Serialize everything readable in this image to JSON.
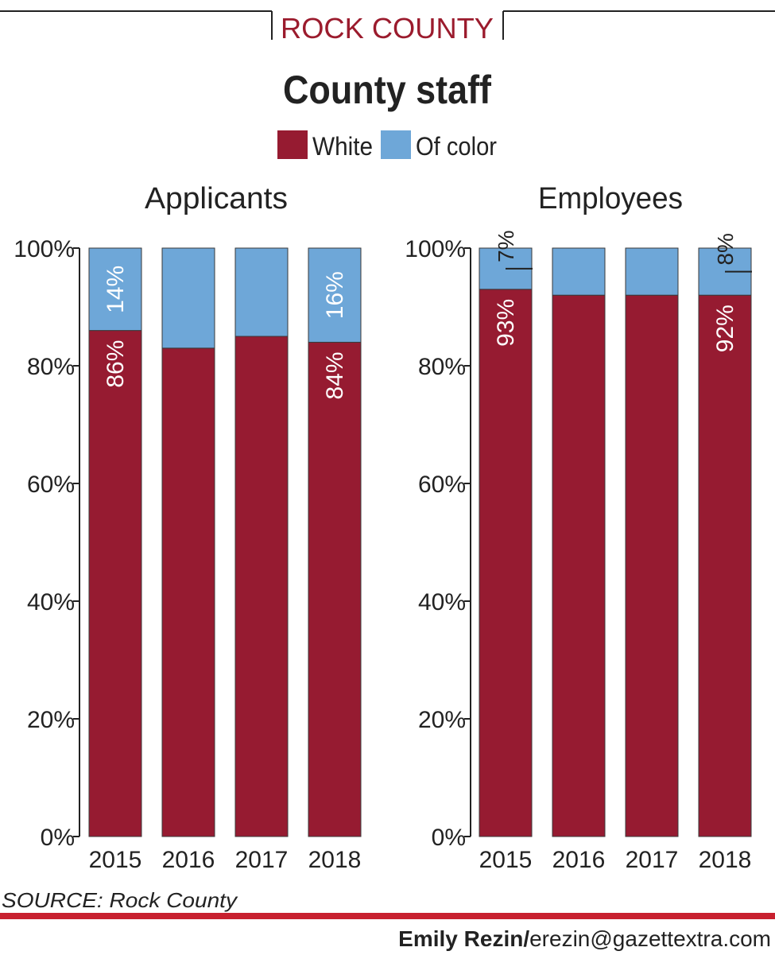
{
  "header": {
    "kicker": "ROCK COUNTY",
    "title": "County staff"
  },
  "colors": {
    "white": "#961b31",
    "of_color": "#6ea7d8",
    "kicker": "#9b1b2d",
    "rule": "#c8202f"
  },
  "legend": [
    {
      "label": "White",
      "color_key": "white"
    },
    {
      "label": "Of color",
      "color_key": "of_color"
    }
  ],
  "chart_data": [
    {
      "type": "bar",
      "stacked": true,
      "title": "Applicants",
      "categories": [
        "2015",
        "2016",
        "2017",
        "2018"
      ],
      "series": [
        {
          "name": "White",
          "values": [
            86,
            83,
            85,
            84
          ]
        },
        {
          "name": "Of color",
          "values": [
            14,
            17,
            15,
            16
          ]
        }
      ],
      "ylim": [
        0,
        100
      ],
      "yticks": [
        "0%",
        "20%",
        "40%",
        "60%",
        "80%",
        "100%"
      ],
      "data_labels": [
        {
          "category": "2015",
          "series": "White",
          "text": "86%"
        },
        {
          "category": "2015",
          "series": "Of color",
          "text": "14%"
        },
        {
          "category": "2018",
          "series": "White",
          "text": "84%"
        },
        {
          "category": "2018",
          "series": "Of color",
          "text": "16%"
        }
      ]
    },
    {
      "type": "bar",
      "stacked": true,
      "title": "Employees",
      "categories": [
        "2015",
        "2016",
        "2017",
        "2018"
      ],
      "series": [
        {
          "name": "White",
          "values": [
            93,
            92,
            92,
            92
          ]
        },
        {
          "name": "Of color",
          "values": [
            7,
            8,
            8,
            8
          ]
        }
      ],
      "ylim": [
        0,
        100
      ],
      "yticks": [
        "0%",
        "20%",
        "40%",
        "60%",
        "80%",
        "100%"
      ],
      "data_labels": [
        {
          "category": "2015",
          "series": "White",
          "text": "93%"
        },
        {
          "category": "2015",
          "series": "Of color",
          "text": "7%"
        },
        {
          "category": "2018",
          "series": "White",
          "text": "92%"
        },
        {
          "category": "2018",
          "series": "Of color",
          "text": "8%"
        }
      ]
    }
  ],
  "footer": {
    "source": "SOURCE: Rock County",
    "credit_name": "Emily Rezin/",
    "credit_email": "erezin@gazettextra.com"
  }
}
